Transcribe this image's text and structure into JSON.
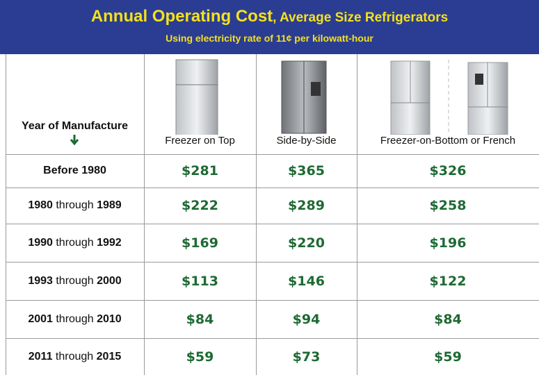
{
  "header": {
    "title": "Annual Operating Cost",
    "title_suffix": ", Average Size Refrigerators",
    "subtitle": "Using electricity rate of 11¢ per kilowatt-hour"
  },
  "table": {
    "corner": "Year of Manufacture",
    "columns": [
      "Freezer on Top",
      "Side-by-Side",
      "Freezer-on-Bottom or French"
    ],
    "rows": [
      {
        "label": [
          "Before 1980"
        ],
        "values": [
          "$281",
          "$365",
          "$326"
        ]
      },
      {
        "label": [
          "1980",
          "through",
          "1989"
        ],
        "values": [
          "$222",
          "$289",
          "$258"
        ]
      },
      {
        "label": [
          "1990",
          "through",
          "1992"
        ],
        "values": [
          "$169",
          "$220",
          "$196"
        ]
      },
      {
        "label": [
          "1993",
          "through",
          "2000"
        ],
        "values": [
          "$113",
          "$146",
          "$122"
        ]
      },
      {
        "label": [
          "2001",
          "through",
          "2010"
        ],
        "values": [
          "$84",
          "$94",
          "$84"
        ]
      },
      {
        "label": [
          "2011",
          "through",
          "2015"
        ],
        "values": [
          "$59",
          "$73",
          "$59"
        ]
      }
    ]
  }
}
